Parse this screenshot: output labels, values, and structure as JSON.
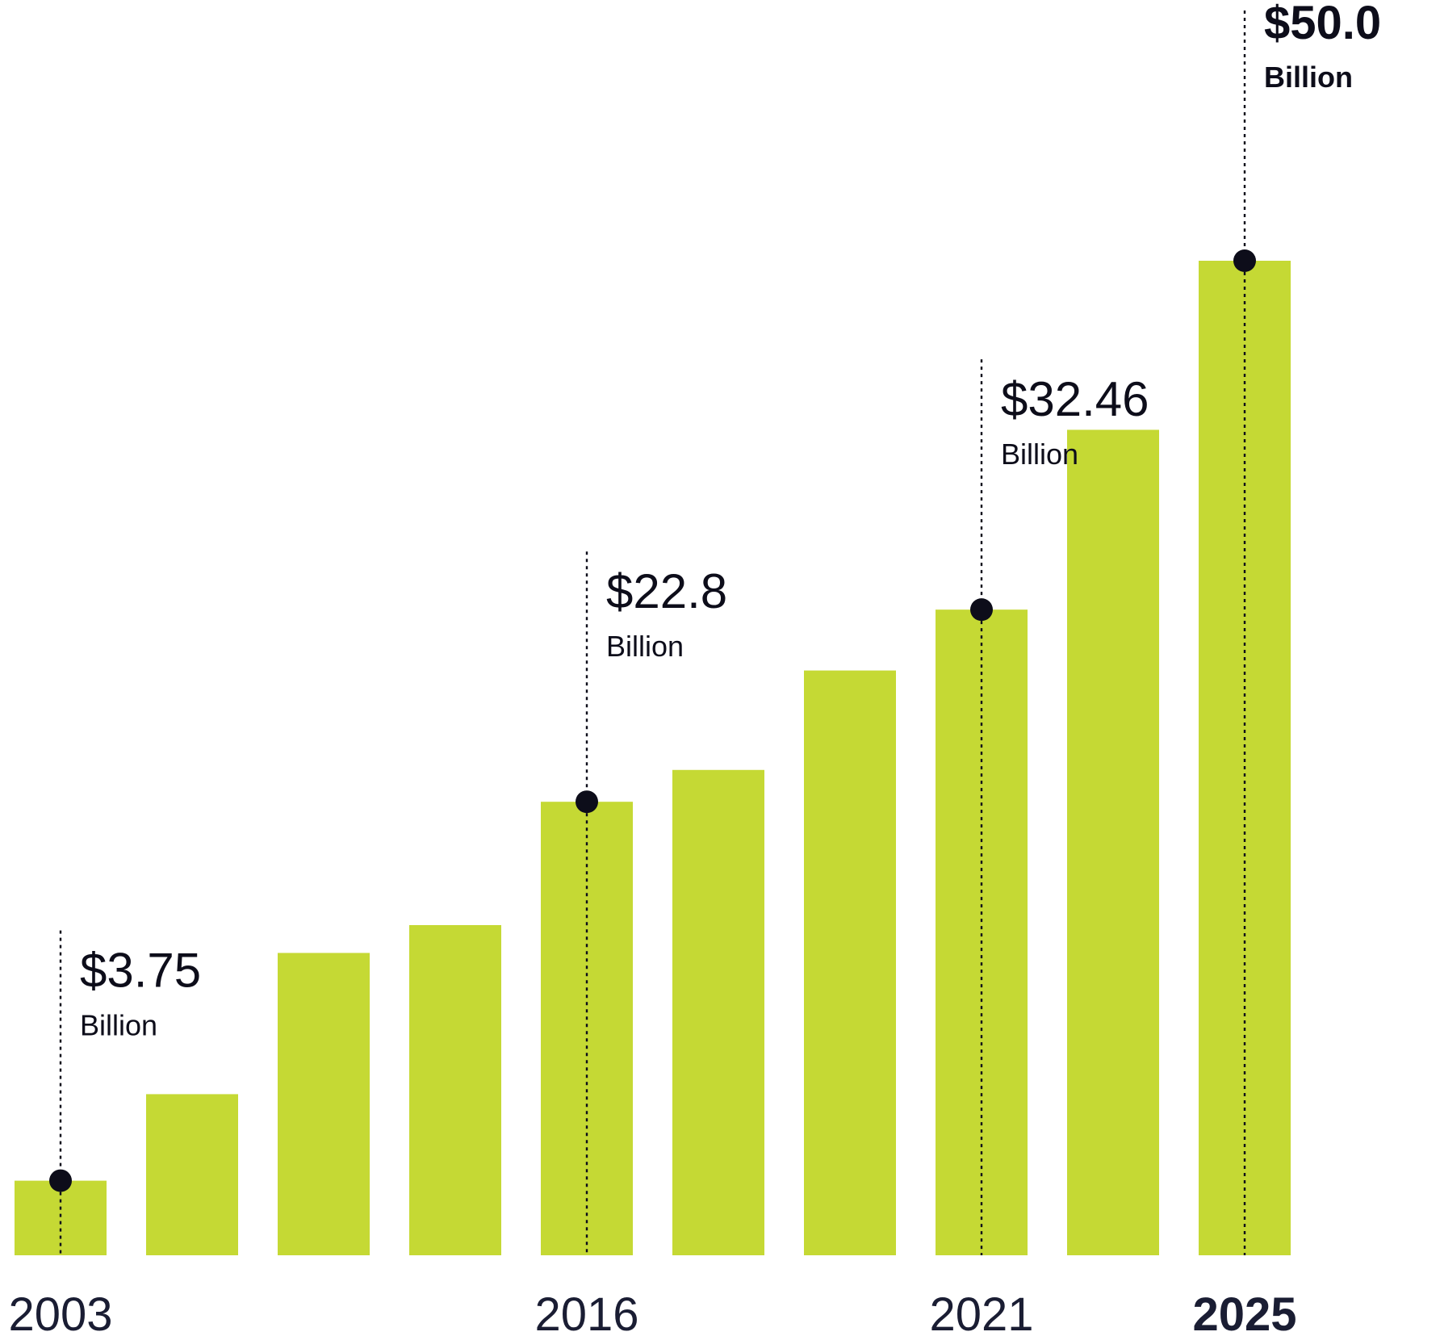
{
  "chart_data": {
    "type": "bar",
    "categories": [
      "2003",
      "",
      "",
      "",
      "2016",
      "",
      "",
      "2021",
      "",
      "2025"
    ],
    "values": [
      3.75,
      8.1,
      15.2,
      16.6,
      22.8,
      24.4,
      29.4,
      32.46,
      41.5,
      50.0
    ],
    "ylim": [
      0,
      50
    ],
    "grid": false,
    "bar_color": "#c5d934",
    "marker_color": "#0d0d1a",
    "tick_color": "#1a1d33",
    "annotations": [
      {
        "index": 0,
        "value_label": "$3.75",
        "unit_label": "Billion",
        "bold": false
      },
      {
        "index": 4,
        "value_label": "$22.8",
        "unit_label": "Billion",
        "bold": false
      },
      {
        "index": 7,
        "value_label": "$32.46",
        "unit_label": "Billion",
        "bold": false
      },
      {
        "index": 9,
        "value_label": "$50.0",
        "unit_label": "Billion",
        "bold": true
      }
    ],
    "bold_tick_index": 9
  }
}
